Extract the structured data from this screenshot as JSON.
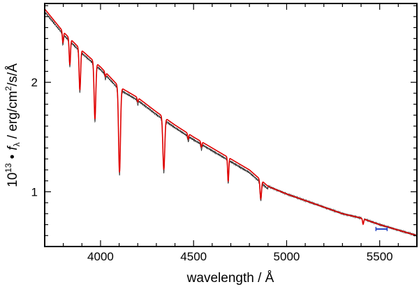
{
  "chart_data": {
    "type": "line",
    "title": "",
    "xlabel": "wavelength / Å",
    "ylabel": {
      "prefix": "10",
      "exponent": "13",
      "bullet": "•",
      "symbol": "f",
      "subscript": "λ",
      "unit_a": " / erg/cm",
      "unit_sup": "2",
      "unit_b": "/s/Å"
    },
    "xlim": [
      3700,
      5700
    ],
    "ylim": [
      0.5,
      2.72
    ],
    "x_ticks": [
      4000,
      4500,
      5000,
      5500
    ],
    "x_tick_labels": [
      "4000",
      "4500",
      "5000",
      "5500"
    ],
    "y_ticks": [
      1,
      2
    ],
    "y_tick_labels": [
      "1",
      "2"
    ],
    "grid": false,
    "legend": "none",
    "continuum": {
      "x": [
        3700,
        3800,
        3900,
        4000,
        4100,
        4200,
        4300,
        4400,
        4500,
        4600,
        4700,
        4800,
        4900,
        5000,
        5100,
        5200,
        5300,
        5400,
        5500,
        5600,
        5700
      ],
      "y": [
        2.67,
        2.46,
        2.29,
        2.14,
        1.96,
        1.86,
        1.73,
        1.61,
        1.5,
        1.4,
        1.3,
        1.2,
        1.05,
        0.98,
        0.92,
        0.86,
        0.8,
        0.76,
        0.7,
        0.65,
        0.6
      ]
    },
    "absorption_lines": [
      {
        "x": 3798,
        "depth": 0.1,
        "width": 3
      },
      {
        "x": 3835,
        "depth": 0.24,
        "width": 3.5
      },
      {
        "x": 3889,
        "depth": 0.38,
        "width": 4
      },
      {
        "x": 3970,
        "depth": 0.52,
        "width": 4.5
      },
      {
        "x": 4026,
        "depth": 0.04,
        "width": 3
      },
      {
        "x": 4102,
        "depth": 0.78,
        "width": 5
      },
      {
        "x": 4200,
        "depth": 0.04,
        "width": 3
      },
      {
        "x": 4340,
        "depth": 0.48,
        "width": 5
      },
      {
        "x": 4471,
        "depth": 0.05,
        "width": 3
      },
      {
        "x": 4542,
        "depth": 0.05,
        "width": 3
      },
      {
        "x": 4686,
        "depth": 0.22,
        "width": 3
      },
      {
        "x": 4861,
        "depth": 0.17,
        "width": 4
      },
      {
        "x": 5411,
        "depth": 0.05,
        "width": 3
      }
    ],
    "series": [
      {
        "color": "#333333",
        "line_width": 0.9
      },
      {
        "color": "#e00000",
        "line_width": 1.6
      }
    ],
    "marker": {
      "x": [
        5480,
        5540
      ],
      "y": 0.66,
      "color": "#2040c0"
    }
  }
}
